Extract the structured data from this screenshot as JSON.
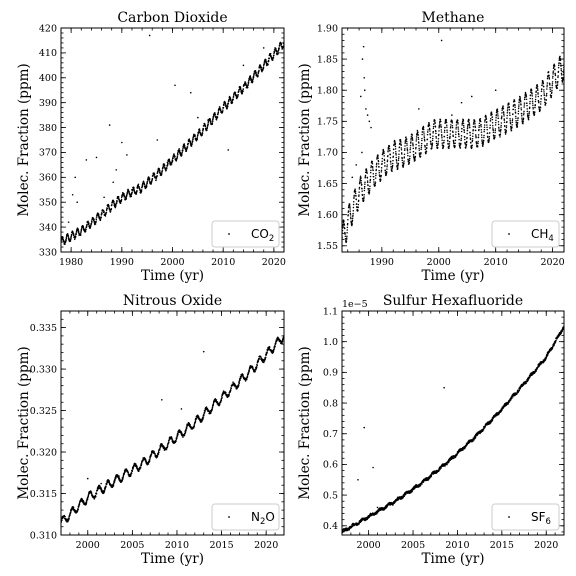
{
  "figure": {
    "background": "#ffffff",
    "point_color": "#000000"
  },
  "chart_data": [
    {
      "type": "scatter",
      "title": "Carbon Dioxide",
      "xlabel": "Time (yr)",
      "ylabel": "Molec. Fraction (ppm)",
      "xlim": [
        1978,
        2022
      ],
      "ylim": [
        330,
        420
      ],
      "xticks": [
        1980,
        1990,
        2000,
        2010,
        2020
      ],
      "yticks": [
        330,
        340,
        350,
        360,
        370,
        380,
        390,
        400,
        410,
        420
      ],
      "legend": {
        "label": "CO",
        "sub": "2",
        "position": "lower-right"
      },
      "trend": [
        [
          1978,
          334
        ],
        [
          1982,
          338.5
        ],
        [
          1986,
          345
        ],
        [
          1990,
          352
        ],
        [
          1994,
          356
        ],
        [
          1998,
          363
        ],
        [
          2002,
          371
        ],
        [
          2006,
          379
        ],
        [
          2010,
          388
        ],
        [
          2014,
          396
        ],
        [
          2018,
          405
        ],
        [
          2022,
          414
        ]
      ],
      "seasonal_amplitude": 1.5,
      "outliers": [
        [
          1979.5,
          342
        ],
        [
          1980.3,
          353
        ],
        [
          1980.8,
          360
        ],
        [
          1981.2,
          350
        ],
        [
          1983,
          367
        ],
        [
          1985,
          368
        ],
        [
          1986.5,
          352
        ],
        [
          1987.6,
          381
        ],
        [
          1988.3,
          358
        ],
        [
          1990,
          374
        ],
        [
          1992,
          355
        ],
        [
          1995.5,
          417
        ],
        [
          1997,
          375
        ],
        [
          2000.5,
          397
        ],
        [
          2003.6,
          394
        ],
        [
          2005,
          384
        ],
        [
          2007,
          383
        ],
        [
          2011,
          371
        ],
        [
          2014,
          405
        ],
        [
          2018,
          412
        ],
        [
          1988.9,
          363
        ],
        [
          1991,
          369
        ],
        [
          1999,
          366
        ]
      ]
    },
    {
      "type": "scatter",
      "title": "Methane",
      "xlabel": "Time (yr)",
      "ylabel": "Molec. Fraction (ppm)",
      "xlim": [
        1983,
        2022
      ],
      "ylim": [
        1.54,
        1.9
      ],
      "xticks": [
        1990,
        2000,
        2010,
        2020
      ],
      "yticks": [
        1.55,
        1.6,
        1.65,
        1.7,
        1.75,
        1.8,
        1.85,
        1.9
      ],
      "legend": {
        "label": "CH",
        "sub": "4",
        "position": "lower-right"
      },
      "trend": [
        [
          1983,
          1.56
        ],
        [
          1984.5,
          1.6
        ],
        [
          1986,
          1.635
        ],
        [
          1988,
          1.66
        ],
        [
          1990,
          1.68
        ],
        [
          1992,
          1.695
        ],
        [
          1994,
          1.7
        ],
        [
          1996,
          1.71
        ],
        [
          1999,
          1.73
        ],
        [
          2001,
          1.73
        ],
        [
          2004,
          1.73
        ],
        [
          2007,
          1.73
        ],
        [
          2010,
          1.745
        ],
        [
          2014,
          1.765
        ],
        [
          2018,
          1.79
        ],
        [
          2022,
          1.84
        ]
      ],
      "seasonal_amplitude": 0.022,
      "outliers": [
        [
          1986.8,
          1.87
        ],
        [
          1986.6,
          1.85
        ],
        [
          1986.9,
          1.82
        ],
        [
          1986.3,
          1.79
        ],
        [
          1987.2,
          1.77
        ],
        [
          1987.5,
          1.76
        ],
        [
          1987.8,
          1.75
        ],
        [
          1988.1,
          1.74
        ],
        [
          1987,
          1.8
        ],
        [
          1986.5,
          1.7
        ],
        [
          1985.5,
          1.68
        ],
        [
          1984.8,
          1.66
        ],
        [
          2000.5,
          1.88
        ],
        [
          2005.8,
          1.79
        ],
        [
          2010,
          1.8
        ],
        [
          1996.5,
          1.77
        ],
        [
          2002.3,
          1.76
        ],
        [
          2004,
          1.78
        ]
      ]
    },
    {
      "type": "scatter",
      "title": "Nitrous Oxide",
      "xlabel": "Time (yr)",
      "ylabel": "Molec. Fraction (ppm)",
      "xlim": [
        1997,
        2022
      ],
      "ylim": [
        0.31,
        0.337
      ],
      "xticks": [
        2000,
        2005,
        2010,
        2015,
        2020
      ],
      "yticks": [
        0.31,
        0.315,
        0.32,
        0.325,
        0.33,
        0.335
      ],
      "legend": {
        "label": "N",
        "sub": "2",
        "suffix": "O",
        "position": "lower-right"
      },
      "trend": [
        [
          1997,
          0.3115
        ],
        [
          2000,
          0.3145
        ],
        [
          2003,
          0.3165
        ],
        [
          2006,
          0.3185
        ],
        [
          2009,
          0.321
        ],
        [
          2012,
          0.3235
        ],
        [
          2015,
          0.3265
        ],
        [
          2018,
          0.3295
        ],
        [
          2022,
          0.334
        ]
      ],
      "seasonal_amplitude": 0.0005,
      "outliers": [
        [
          2008.3,
          0.3263
        ],
        [
          2013,
          0.3321
        ],
        [
          2000,
          0.3168
        ],
        [
          2003.5,
          0.3171
        ],
        [
          2010.5,
          0.3252
        ],
        [
          2001.5,
          0.3162
        ]
      ]
    },
    {
      "type": "scatter",
      "title": "Sulfur Hexafluoride",
      "xlabel": "Time (yr)",
      "ylabel": "Molec. Fraction (ppm)",
      "offset_text": "1e−5",
      "xlim": [
        1997,
        2022
      ],
      "ylim": [
        0.37,
        1.1
      ],
      "xticks": [
        2000,
        2005,
        2010,
        2015,
        2020
      ],
      "yticks": [
        0.4,
        0.5,
        0.6,
        0.7,
        0.8,
        0.9,
        1.0,
        1.1
      ],
      "legend": {
        "label": "SF",
        "sub": "6",
        "position": "lower-right"
      },
      "trend": [
        [
          1997,
          0.38
        ],
        [
          2000,
          0.43
        ],
        [
          2003,
          0.48
        ],
        [
          2006,
          0.54
        ],
        [
          2009,
          0.61
        ],
        [
          2012,
          0.69
        ],
        [
          2015,
          0.78
        ],
        [
          2018,
          0.88
        ],
        [
          2020,
          0.95
        ],
        [
          2022,
          1.05
        ]
      ],
      "seasonal_amplitude": 0.003,
      "outliers": [
        [
          1999.5,
          0.72
        ],
        [
          2000.5,
          0.59
        ],
        [
          2008.5,
          0.85
        ],
        [
          1998.8,
          0.55
        ],
        [
          2001,
          0.46
        ]
      ]
    }
  ]
}
